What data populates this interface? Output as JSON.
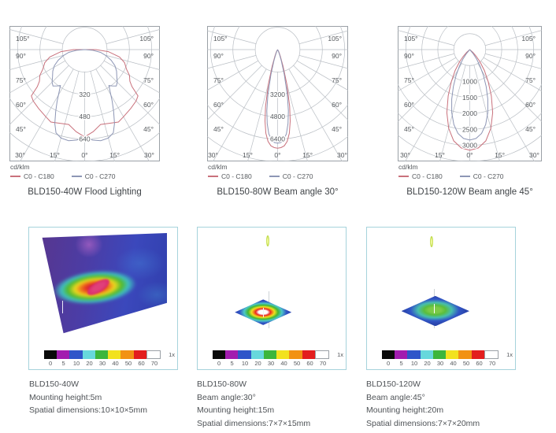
{
  "polar_axis": {
    "side_labels": [
      "105°",
      "90°",
      "75°",
      "60°",
      "45°"
    ],
    "bottom_labels": [
      "30°",
      "15°",
      "0°",
      "15°",
      "30°"
    ],
    "grid_color": "#b9bec4",
    "box_border": "#9aa0a6"
  },
  "chart_data": [
    {
      "type": "polar-photometric",
      "title": "BLD150-40W Flood Lighting",
      "unit": "cd/klm",
      "max_value": 800,
      "rings": [
        160,
        320,
        480,
        640,
        800
      ],
      "ring_labels": [
        {
          "value": 320,
          "label": "320"
        },
        {
          "value": 480,
          "label": "480"
        },
        {
          "value": 640,
          "label": "640"
        }
      ],
      "series": [
        {
          "name": "C0 - C180",
          "color": "#c9717c",
          "points": [
            [
              -95,
              0
            ],
            [
              -90,
              80
            ],
            [
              -85,
              170
            ],
            [
              -78,
              255
            ],
            [
              -72,
              300
            ],
            [
              -65,
              330
            ],
            [
              -60,
              370
            ],
            [
              -55,
              395
            ],
            [
              -52,
              430
            ],
            [
              -49,
              505
            ],
            [
              -45,
              520
            ],
            [
              -38,
              535
            ],
            [
              -30,
              555
            ],
            [
              -25,
              572
            ],
            [
              -18,
              555
            ],
            [
              -12,
              548
            ],
            [
              -6,
              590
            ],
            [
              0,
              625
            ],
            [
              6,
              590
            ],
            [
              12,
              548
            ],
            [
              18,
              555
            ],
            [
              25,
              572
            ],
            [
              30,
              555
            ],
            [
              38,
              535
            ],
            [
              45,
              520
            ],
            [
              49,
              505
            ],
            [
              52,
              430
            ],
            [
              55,
              395
            ],
            [
              60,
              370
            ],
            [
              65,
              330
            ],
            [
              72,
              300
            ],
            [
              78,
              255
            ],
            [
              85,
              170
            ],
            [
              90,
              80
            ],
            [
              95,
              0
            ]
          ]
        },
        {
          "name": "C0 - C270",
          "color": "#8d96b5",
          "points": [
            [
              -90,
              0
            ],
            [
              -85,
              60
            ],
            [
              -80,
              115
            ],
            [
              -74,
              160
            ],
            [
              -68,
              205
            ],
            [
              -62,
              245
            ],
            [
              -56,
              275
            ],
            [
              -50,
              300
            ],
            [
              -45,
              330
            ],
            [
              -41,
              345
            ],
            [
              -37,
              325
            ],
            [
              -34,
              310
            ],
            [
              -31,
              355
            ],
            [
              -28,
              420
            ],
            [
              -25,
              490
            ],
            [
              -22,
              570
            ],
            [
              -19,
              630
            ],
            [
              -15,
              655
            ],
            [
              -10,
              662
            ],
            [
              -5,
              650
            ],
            [
              0,
              628
            ],
            [
              5,
              650
            ],
            [
              10,
              662
            ],
            [
              15,
              655
            ],
            [
              19,
              630
            ],
            [
              22,
              570
            ],
            [
              25,
              490
            ],
            [
              28,
              420
            ],
            [
              31,
              355
            ],
            [
              34,
              310
            ],
            [
              37,
              325
            ],
            [
              41,
              345
            ],
            [
              45,
              330
            ],
            [
              50,
              300
            ],
            [
              56,
              275
            ],
            [
              62,
              245
            ],
            [
              68,
              205
            ],
            [
              74,
              160
            ],
            [
              80,
              115
            ],
            [
              85,
              60
            ],
            [
              90,
              0
            ]
          ]
        }
      ]
    },
    {
      "type": "polar-photometric",
      "title": "BLD150-80W Beam angle 30°",
      "unit": "cd/klm",
      "max_value": 8000,
      "rings": [
        1600,
        3200,
        4800,
        6400,
        8000
      ],
      "ring_labels": [
        {
          "value": 3200,
          "label": "3200"
        },
        {
          "value": 4800,
          "label": "4800"
        },
        {
          "value": 6400,
          "label": "6400"
        }
      ],
      "series": [
        {
          "name": "C0 - C180",
          "color": "#c9717c",
          "points": [
            [
              -35,
              0
            ],
            [
              -30,
              140
            ],
            [
              -26,
              260
            ],
            [
              -22,
              520
            ],
            [
              -18,
              1250
            ],
            [
              -15,
              2550
            ],
            [
              -12,
              4150
            ],
            [
              -10,
              5200
            ],
            [
              -8,
              6050
            ],
            [
              -6,
              6600
            ],
            [
              -4,
              6900
            ],
            [
              -2,
              7020
            ],
            [
              0,
              7060
            ],
            [
              2,
              7020
            ],
            [
              4,
              6900
            ],
            [
              6,
              6600
            ],
            [
              8,
              6050
            ],
            [
              10,
              5200
            ],
            [
              12,
              4150
            ],
            [
              15,
              2550
            ],
            [
              18,
              1250
            ],
            [
              22,
              520
            ],
            [
              26,
              260
            ],
            [
              30,
              140
            ],
            [
              35,
              0
            ]
          ]
        },
        {
          "name": "C0 - C270",
          "color": "#8d96b5",
          "points": [
            [
              -30,
              0
            ],
            [
              -26,
              130
            ],
            [
              -22,
              350
            ],
            [
              -18,
              850
            ],
            [
              -15,
              1850
            ],
            [
              -12,
              3350
            ],
            [
              -10,
              4450
            ],
            [
              -8,
              5350
            ],
            [
              -6,
              6050
            ],
            [
              -4,
              6450
            ],
            [
              -2,
              6650
            ],
            [
              0,
              6700
            ],
            [
              2,
              6650
            ],
            [
              4,
              6450
            ],
            [
              6,
              6050
            ],
            [
              8,
              5350
            ],
            [
              10,
              4450
            ],
            [
              12,
              3350
            ],
            [
              15,
              1850
            ],
            [
              18,
              850
            ],
            [
              22,
              350
            ],
            [
              26,
              130
            ],
            [
              30,
              0
            ]
          ]
        }
      ]
    },
    {
      "type": "polar-photometric",
      "title": "BLD150-120W Beam angle 45°",
      "unit": "cd/klm",
      "max_value": 3500,
      "rings": [
        500,
        1000,
        1500,
        2000,
        2500,
        3000,
        3500
      ],
      "ring_labels": [
        {
          "value": 1000,
          "label": "1000"
        },
        {
          "value": 1500,
          "label": "1500"
        },
        {
          "value": 2000,
          "label": "2000"
        },
        {
          "value": 2500,
          "label": "2500"
        },
        {
          "value": 3000,
          "label": "3000"
        }
      ],
      "series": [
        {
          "name": "C0 - C180",
          "color": "#c9717c",
          "points": [
            [
              -52,
              0
            ],
            [
              -48,
              130
            ],
            [
              -44,
              290
            ],
            [
              -40,
              500
            ],
            [
              -35,
              800
            ],
            [
              -30,
              1150
            ],
            [
              -25,
              1600
            ],
            [
              -20,
              2100
            ],
            [
              -15,
              2550
            ],
            [
              -10,
              2900
            ],
            [
              -5,
              3090
            ],
            [
              0,
              3150
            ],
            [
              5,
              3090
            ],
            [
              10,
              2900
            ],
            [
              15,
              2550
            ],
            [
              20,
              2100
            ],
            [
              25,
              1600
            ],
            [
              30,
              1150
            ],
            [
              35,
              800
            ],
            [
              40,
              500
            ],
            [
              44,
              290
            ],
            [
              48,
              130
            ],
            [
              52,
              0
            ]
          ]
        },
        {
          "name": "C0 - C270",
          "color": "#8d96b5",
          "points": [
            [
              -44,
              0
            ],
            [
              -40,
              160
            ],
            [
              -36,
              360
            ],
            [
              -32,
              610
            ],
            [
              -28,
              910
            ],
            [
              -24,
              1260
            ],
            [
              -20,
              1650
            ],
            [
              -16,
              2050
            ],
            [
              -12,
              2400
            ],
            [
              -8,
              2650
            ],
            [
              -4,
              2790
            ],
            [
              0,
              2830
            ],
            [
              4,
              2790
            ],
            [
              8,
              2650
            ],
            [
              12,
              2400
            ],
            [
              16,
              2050
            ],
            [
              20,
              1650
            ],
            [
              24,
              1260
            ],
            [
              28,
              910
            ],
            [
              32,
              610
            ],
            [
              36,
              360
            ],
            [
              40,
              160
            ],
            [
              44,
              0
            ]
          ]
        }
      ]
    }
  ],
  "color_scale": {
    "segments": [
      {
        "color": "#0a0a0a",
        "label": "0"
      },
      {
        "color": "#a21caf",
        "label": "5"
      },
      {
        "color": "#2f55c9",
        "label": "10"
      },
      {
        "color": "#67d8dc",
        "label": "20"
      },
      {
        "color": "#3cb63c",
        "label": "30"
      },
      {
        "color": "#f2e21e",
        "label": "40"
      },
      {
        "color": "#f29213",
        "label": "50"
      },
      {
        "color": "#e31e1e",
        "label": "60"
      },
      {
        "color": "#ffffff",
        "label": "70"
      }
    ],
    "multiplier": "1x"
  },
  "images": [
    {
      "caption_lines": [
        "BLD150-40W",
        "Mounting height:5m",
        "Spatial dimensions:10×10×5mm"
      ]
    },
    {
      "caption_lines": [
        "BLD150-80W",
        "Beam angle:30°",
        "Mounting height:15m",
        "Spatial dimensions:7×7×15mm"
      ]
    },
    {
      "caption_lines": [
        "BLD150-120W",
        "Beam angle:45°",
        "Mounting height:20m",
        "Spatial dimensions:7×7×20mm"
      ]
    }
  ]
}
